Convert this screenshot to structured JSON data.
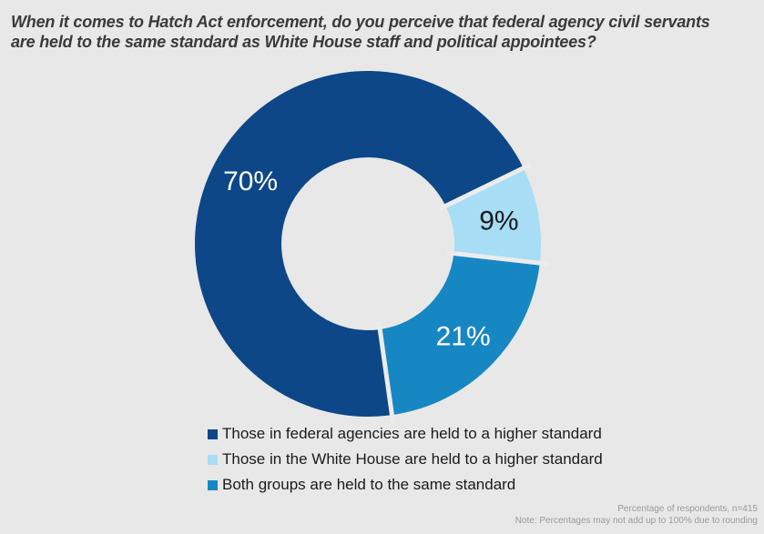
{
  "page": {
    "background_color": "#e8e8e8"
  },
  "title": {
    "full_text": "When it comes to Hatch Act enforcement, do you perceive that federal agency civil servants are held to the same standard as White House staff and political appointees?",
    "lines": [
      "When it comes to Hatch Act enforcement, do you perceive that federal agency civil servants",
      "are held to the same standard as White House staff and political appointees?"
    ]
  },
  "chart_data": {
    "type": "pie",
    "subtype": "donut",
    "units": "percent of respondents",
    "title": "",
    "slices": [
      {
        "label": "Those in federal agencies are held to a higher standard",
        "value": 70,
        "display_label": "70%",
        "color": "#0d4787",
        "text_color": "#ffffff"
      },
      {
        "label": "Those in the White House are held to a higher standard",
        "value": 9,
        "display_label": "9%",
        "color": "#a8ddf6",
        "text_color": "#1a1a1a"
      },
      {
        "label": "Both groups are held to the same standard",
        "value": 21,
        "display_label": "21%",
        "color": "#1787c4",
        "text_color": "#ffffff"
      }
    ],
    "start_angle_deg": 172,
    "direction": "clockwise",
    "inner_radius_ratio": 0.5,
    "separator_color": "#ececec",
    "legend_position": "bottom-left",
    "grid": false
  },
  "footer": {
    "line1": "Percentage of respondents, n=415",
    "line2": "Note: Percentages may not add up to 100% due to rounding"
  }
}
